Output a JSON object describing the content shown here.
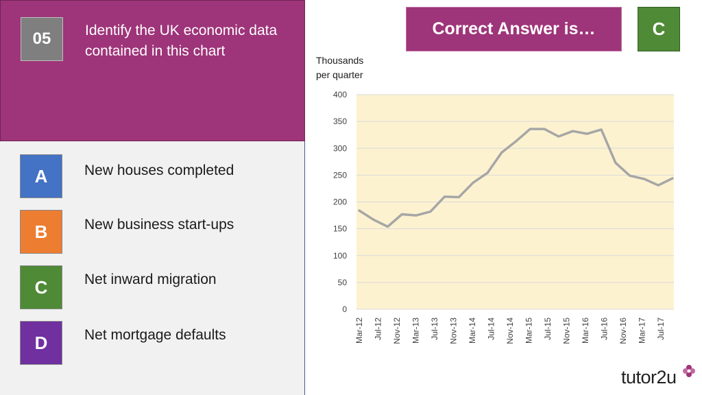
{
  "question": {
    "number": "05",
    "text": "Identify the UK economic data contained in this chart"
  },
  "options": [
    {
      "letter": "A",
      "label": "New houses completed",
      "color": "#4472c4"
    },
    {
      "letter": "B",
      "label": "New business start-ups",
      "color": "#ed7d31"
    },
    {
      "letter": "C",
      "label": "Net inward migration",
      "color": "#4f8a36"
    },
    {
      "letter": "D",
      "label": "Net mortgage defaults",
      "color": "#7030a0"
    }
  ],
  "answer": {
    "label": "Correct Answer is…",
    "letter": "C"
  },
  "brand": {
    "logo_text": "tutor2u",
    "accent": "#9e3479"
  },
  "chart_data": {
    "type": "line",
    "ylabel": "Thousands per quarter",
    "ylabel_lines": [
      "Thousands",
      "per quarter"
    ],
    "ylim": [
      0,
      400
    ],
    "yticks": [
      0,
      50,
      100,
      150,
      200,
      250,
      300,
      350,
      400
    ],
    "grid": true,
    "plot_background": "#fdf2d0",
    "line_color": "#a6a6a6",
    "x_tick_labels": [
      "Mar-12",
      "Jul-12",
      "Nov-12",
      "Mar-13",
      "Jul-13",
      "Nov-13",
      "Mar-14",
      "Jul-14",
      "Nov-14",
      "Mar-15",
      "Jul-15",
      "Nov-15",
      "Mar-16",
      "Jul-16",
      "Nov-16",
      "Mar-17",
      "Jul-17"
    ],
    "series": [
      {
        "values": [
          184,
          167,
          154,
          177,
          175,
          182,
          210,
          209,
          236,
          254,
          292,
          313,
          336,
          336,
          322,
          332,
          327,
          335,
          273,
          249,
          243,
          231,
          244
        ]
      }
    ]
  }
}
